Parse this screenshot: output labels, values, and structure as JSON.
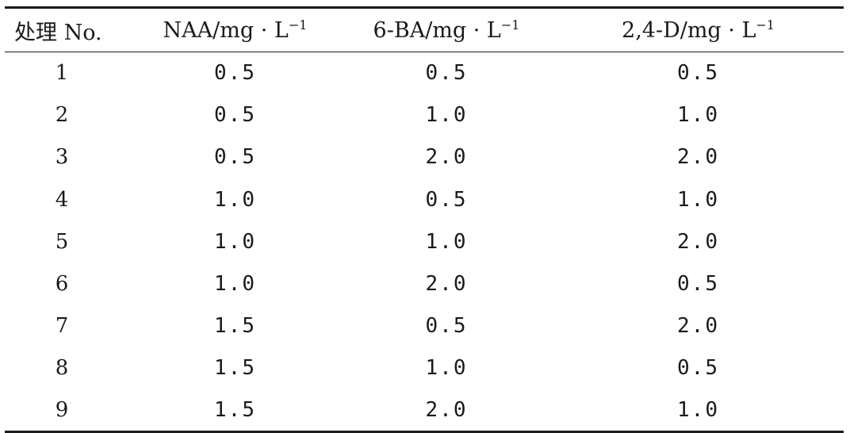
{
  "table": {
    "headers": [
      {
        "main": "处理 No.",
        "sup": ""
      },
      {
        "main": "NAA/mg · L",
        "sup": "−1"
      },
      {
        "main": "6-BA/mg · L",
        "sup": "−1"
      },
      {
        "main": "2,4-D/mg · L",
        "sup": "−1"
      }
    ],
    "rows": [
      [
        "1",
        "0.5",
        "0.5",
        "0.5"
      ],
      [
        "2",
        "0.5",
        "1.0",
        "1.0"
      ],
      [
        "3",
        "0.5",
        "2.0",
        "2.0"
      ],
      [
        "4",
        "1.0",
        "0.5",
        "1.0"
      ],
      [
        "5",
        "1.0",
        "1.0",
        "2.0"
      ],
      [
        "6",
        "1.0",
        "2.0",
        "0.5"
      ],
      [
        "7",
        "1.5",
        "0.5",
        "2.0"
      ],
      [
        "8",
        "1.5",
        "1.0",
        "0.5"
      ],
      [
        "9",
        "1.5",
        "2.0",
        "1.0"
      ]
    ]
  }
}
